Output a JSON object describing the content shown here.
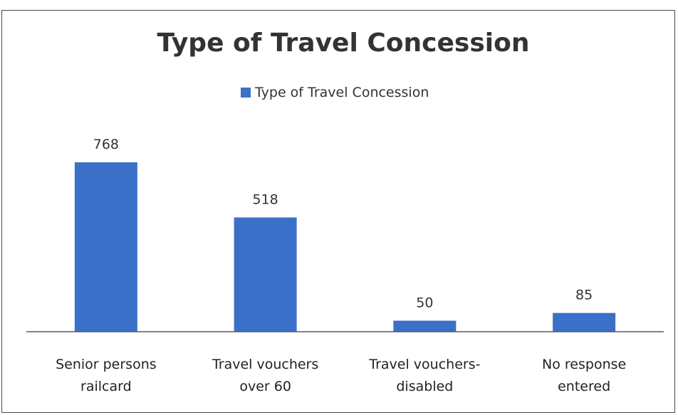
{
  "chart_data": {
    "type": "bar",
    "title": "Type of Travel Concession",
    "categories": [
      [
        "Senior persons",
        "railcard"
      ],
      [
        "Travel vouchers",
        "over 60"
      ],
      [
        "Travel vouchers-",
        "disabled"
      ],
      [
        "No response",
        "entered"
      ]
    ],
    "series": [
      {
        "name": "Type of Travel Concession",
        "values": [
          768,
          518,
          50,
          85
        ],
        "color": "#3a70c8"
      }
    ],
    "data_labels": [
      "768",
      "518",
      "50",
      "85"
    ],
    "legend": "top",
    "grid": false,
    "ylim": [
      0,
      800
    ],
    "xlabel": "",
    "ylabel": ""
  }
}
